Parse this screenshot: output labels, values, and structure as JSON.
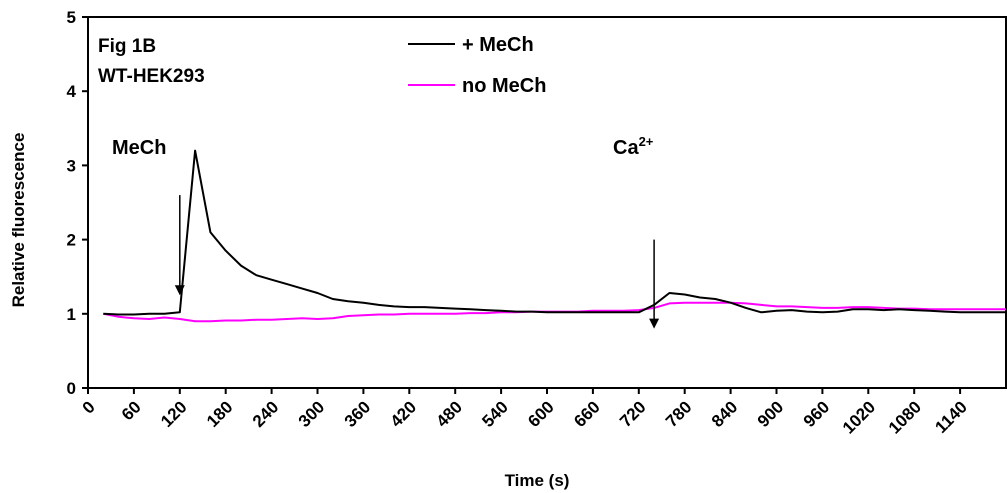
{
  "chart_data": {
    "type": "line",
    "panel_label": "Fig 1B",
    "cell_line": "WT-HEK293",
    "xlabel": "Time (s)",
    "ylabel": "Relative fluorescence",
    "xlim": [
      0,
      1200
    ],
    "ylim": [
      0,
      5
    ],
    "x_ticks": [
      0,
      60,
      120,
      180,
      240,
      300,
      360,
      420,
      480,
      540,
      600,
      660,
      720,
      780,
      840,
      900,
      960,
      1020,
      1080,
      1140
    ],
    "y_ticks": [
      0,
      1,
      2,
      3,
      4,
      5
    ],
    "grid": false,
    "legend_position": "top-center",
    "series": [
      {
        "name": "+ MeCh",
        "color": "#000000",
        "x": [
          20,
          40,
          60,
          80,
          100,
          120,
          140,
          160,
          180,
          200,
          220,
          240,
          260,
          280,
          300,
          320,
          340,
          360,
          380,
          400,
          420,
          440,
          460,
          480,
          500,
          520,
          540,
          560,
          580,
          600,
          620,
          640,
          660,
          680,
          700,
          720,
          740,
          760,
          780,
          800,
          820,
          840,
          860,
          880,
          900,
          920,
          940,
          960,
          980,
          1000,
          1020,
          1040,
          1060,
          1080,
          1100,
          1120,
          1140,
          1160,
          1180,
          1200
        ],
        "y": [
          1.0,
          0.99,
          0.99,
          1.0,
          1.0,
          1.02,
          3.2,
          2.1,
          1.85,
          1.65,
          1.52,
          1.46,
          1.4,
          1.34,
          1.28,
          1.2,
          1.17,
          1.15,
          1.12,
          1.1,
          1.09,
          1.09,
          1.08,
          1.07,
          1.06,
          1.05,
          1.04,
          1.03,
          1.03,
          1.02,
          1.02,
          1.02,
          1.02,
          1.02,
          1.02,
          1.02,
          1.12,
          1.28,
          1.26,
          1.22,
          1.2,
          1.15,
          1.08,
          1.02,
          1.04,
          1.05,
          1.03,
          1.02,
          1.03,
          1.06,
          1.06,
          1.05,
          1.06,
          1.05,
          1.04,
          1.03,
          1.02,
          1.02,
          1.02,
          1.02
        ]
      },
      {
        "name": "no MeCh",
        "color": "#ff00ff",
        "x": [
          20,
          40,
          60,
          80,
          100,
          120,
          140,
          160,
          180,
          200,
          220,
          240,
          260,
          280,
          300,
          320,
          340,
          360,
          380,
          400,
          420,
          440,
          460,
          480,
          500,
          520,
          540,
          560,
          580,
          600,
          620,
          640,
          660,
          680,
          700,
          720,
          740,
          760,
          780,
          800,
          820,
          840,
          860,
          880,
          900,
          920,
          940,
          960,
          980,
          1000,
          1020,
          1040,
          1060,
          1080,
          1100,
          1120,
          1140,
          1160,
          1180,
          1200
        ],
        "y": [
          1.0,
          0.96,
          0.94,
          0.93,
          0.95,
          0.93,
          0.9,
          0.9,
          0.91,
          0.91,
          0.92,
          0.92,
          0.93,
          0.94,
          0.93,
          0.94,
          0.97,
          0.98,
          0.99,
          0.99,
          1.0,
          1.0,
          1.0,
          1.0,
          1.01,
          1.01,
          1.02,
          1.02,
          1.03,
          1.03,
          1.03,
          1.03,
          1.04,
          1.04,
          1.04,
          1.05,
          1.08,
          1.14,
          1.15,
          1.15,
          1.15,
          1.15,
          1.14,
          1.12,
          1.1,
          1.1,
          1.09,
          1.08,
          1.08,
          1.09,
          1.09,
          1.08,
          1.07,
          1.07,
          1.06,
          1.06,
          1.06,
          1.06,
          1.06,
          1.06
        ]
      }
    ],
    "annotations": [
      {
        "label": "MeCh",
        "x": 120,
        "arrow_from_y": 2.6,
        "arrow_to_y": 1.25
      },
      {
        "label": "Ca",
        "superscript": "2+",
        "x": 740,
        "arrow_from_y": 2.0,
        "arrow_to_y": 0.8
      }
    ]
  }
}
